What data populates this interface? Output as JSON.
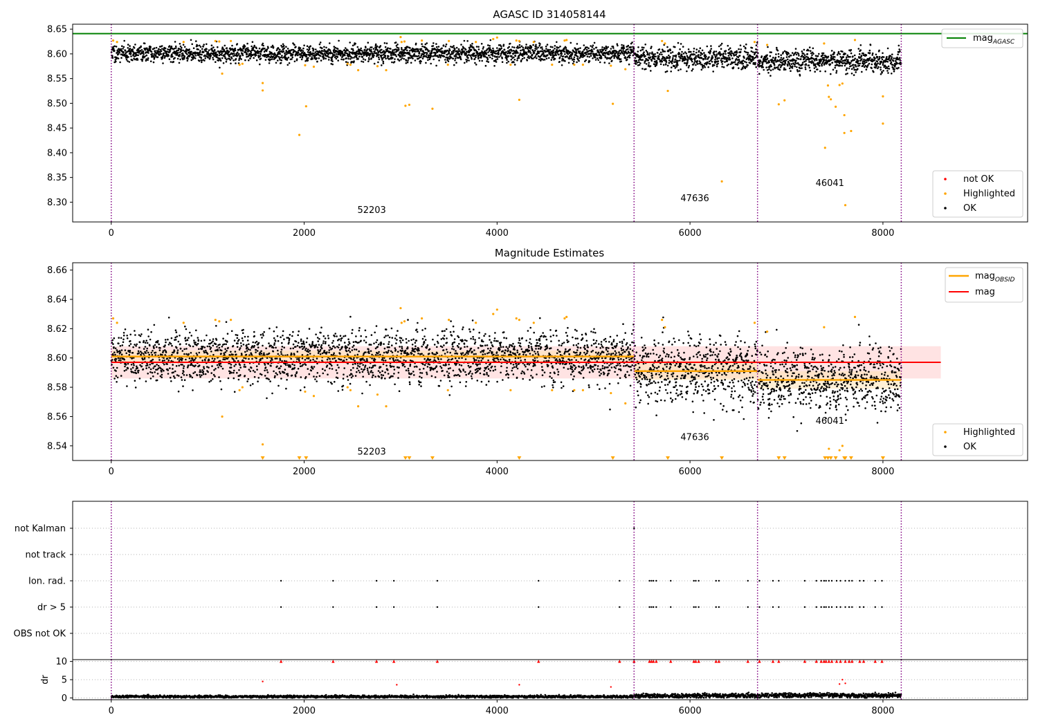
{
  "colors": {
    "ok": "#000000",
    "highlighted": "#ffa500",
    "not_ok": "#ff0000",
    "agasc_line": "#008000",
    "mag_line": "#ff0000",
    "obsid_line": "#ffa500",
    "band": "#ffcccc",
    "boundary": "#800080",
    "grid": "#b0b0b0"
  },
  "chart_data": [
    {
      "type": "scatter",
      "title": "AGASC ID 314058144",
      "xlabel": "",
      "ylabel": "",
      "xlim": [
        -400,
        9500
      ],
      "ylim": [
        8.26,
        8.66
      ],
      "xticks": [
        0,
        2000,
        4000,
        6000,
        8000
      ],
      "xtick_labels": [
        "0",
        "2000",
        "4000",
        "6000",
        "8000"
      ],
      "yticks": [
        8.3,
        8.35,
        8.4,
        8.45,
        8.5,
        8.55,
        8.6,
        8.65
      ],
      "ytick_labels": [
        "8.30",
        "8.35",
        "8.40",
        "8.45",
        "8.50",
        "8.55",
        "8.60",
        "8.65"
      ],
      "grid": false,
      "obsid_boundaries": [
        0,
        5420,
        6700,
        8190
      ],
      "obsid_labels": [
        {
          "text": "52203",
          "x": 2700,
          "y": 8.278
        },
        {
          "text": "47636",
          "x": 6050,
          "y": 8.302
        },
        {
          "text": "46041",
          "x": 7450,
          "y": 8.333
        }
      ],
      "hlines": [
        {
          "name": "mag_AGASC",
          "y": 8.641,
          "color": "#008000"
        }
      ],
      "legends": [
        {
          "position": "upper right",
          "entries": [
            {
              "label": "mag",
              "sub": "AGASC",
              "kind": "line",
              "color": "#008000"
            }
          ]
        },
        {
          "position": "lower right",
          "entries": [
            {
              "label": "not OK",
              "kind": "dot",
              "color": "#ff0000"
            },
            {
              "label": "Highlighted",
              "kind": "dot",
              "color": "#ffa500"
            },
            {
              "label": "OK",
              "kind": "dot",
              "color": "#000000"
            }
          ]
        }
      ],
      "ok_segments": [
        {
          "x_start": 0,
          "x_end": 5420,
          "mean": 8.601,
          "spread": 0.0085
        },
        {
          "x_start": 5420,
          "x_end": 6700,
          "mean": 8.591,
          "spread": 0.011
        },
        {
          "x_start": 6700,
          "x_end": 8190,
          "mean": 8.585,
          "spread": 0.011
        }
      ],
      "highlighted_points": [
        [
          20,
          8.627
        ],
        [
          60,
          8.624
        ],
        [
          750,
          8.624
        ],
        [
          1080,
          8.626
        ],
        [
          1120,
          8.625
        ],
        [
          1150,
          8.56
        ],
        [
          1240,
          8.626
        ],
        [
          1330,
          8.578
        ],
        [
          1360,
          8.58
        ],
        [
          1570,
          8.541
        ],
        [
          1570,
          8.526
        ],
        [
          1950,
          8.436
        ],
        [
          2010,
          8.577
        ],
        [
          2020,
          8.494
        ],
        [
          2100,
          8.574
        ],
        [
          2450,
          8.58
        ],
        [
          2480,
          8.578
        ],
        [
          2560,
          8.567
        ],
        [
          2760,
          8.575
        ],
        [
          2850,
          8.567
        ],
        [
          3000,
          8.634
        ],
        [
          3010,
          8.624
        ],
        [
          3040,
          8.625
        ],
        [
          3050,
          8.495
        ],
        [
          3090,
          8.497
        ],
        [
          3220,
          8.627
        ],
        [
          3330,
          8.489
        ],
        [
          3490,
          8.578
        ],
        [
          3500,
          8.626
        ],
        [
          3780,
          8.624
        ],
        [
          3960,
          8.63
        ],
        [
          4000,
          8.633
        ],
        [
          4140,
          8.578
        ],
        [
          4200,
          8.627
        ],
        [
          4230,
          8.626
        ],
        [
          4230,
          8.507
        ],
        [
          4380,
          8.624
        ],
        [
          4570,
          8.578
        ],
        [
          4700,
          8.627
        ],
        [
          4720,
          8.628
        ],
        [
          4800,
          8.578
        ],
        [
          4890,
          8.578
        ],
        [
          5180,
          8.576
        ],
        [
          5200,
          8.499
        ],
        [
          5330,
          8.569
        ],
        [
          5710,
          8.626
        ],
        [
          5740,
          8.621
        ],
        [
          5770,
          8.525
        ],
        [
          6330,
          8.342
        ],
        [
          6670,
          8.624
        ],
        [
          6800,
          8.618
        ],
        [
          6920,
          8.498
        ],
        [
          6980,
          8.506
        ],
        [
          7390,
          8.621
        ],
        [
          7400,
          8.41
        ],
        [
          7430,
          8.536
        ],
        [
          7440,
          8.513
        ],
        [
          7460,
          8.508
        ],
        [
          7510,
          8.493
        ],
        [
          7550,
          8.537
        ],
        [
          7580,
          8.54
        ],
        [
          7600,
          8.476
        ],
        [
          7600,
          8.44
        ],
        [
          7610,
          8.294
        ],
        [
          7670,
          8.444
        ],
        [
          7710,
          8.628
        ],
        [
          8000,
          8.514
        ],
        [
          8000,
          8.459
        ]
      ],
      "not_ok_points": []
    },
    {
      "type": "scatter",
      "title": "Magnitude Estimates",
      "xlabel": "",
      "ylabel": "",
      "xlim": [
        -400,
        9500
      ],
      "ylim": [
        8.53,
        8.665
      ],
      "xticks": [
        0,
        2000,
        4000,
        6000,
        8000
      ],
      "xtick_labels": [
        "0",
        "2000",
        "4000",
        "6000",
        "8000"
      ],
      "yticks": [
        8.54,
        8.56,
        8.58,
        8.6,
        8.62,
        8.64,
        8.66
      ],
      "ytick_labels": [
        "8.54",
        "8.56",
        "8.58",
        "8.60",
        "8.62",
        "8.64",
        "8.66"
      ],
      "grid": false,
      "obsid_boundaries": [
        0,
        5420,
        6700,
        8190
      ],
      "obsid_labels": [
        {
          "text": "52203",
          "x": 2700,
          "y": 8.534
        },
        {
          "text": "47636",
          "x": 6050,
          "y": 8.544
        },
        {
          "text": "46041",
          "x": 7450,
          "y": 8.555
        }
      ],
      "mag": {
        "value": 8.597,
        "band": [
          8.586,
          8.608
        ],
        "x_range": [
          0,
          8600
        ]
      },
      "mag_obsid": [
        {
          "x_start": 0,
          "x_end": 5420,
          "value": 8.601,
          "band": [
            8.597,
            8.605
          ]
        },
        {
          "x_start": 5420,
          "x_end": 6700,
          "value": 8.591,
          "band": [
            8.585,
            8.598
          ]
        },
        {
          "x_start": 6700,
          "x_end": 8190,
          "value": 8.585,
          "band": [
            8.579,
            8.591
          ]
        }
      ],
      "legends": [
        {
          "position": "upper right",
          "entries": [
            {
              "label": "mag",
              "sub": "OBSID",
              "kind": "line",
              "color": "#ffa500"
            },
            {
              "label": "mag",
              "kind": "line",
              "color": "#ff0000"
            }
          ]
        },
        {
          "position": "lower right",
          "entries": [
            {
              "label": "Highlighted",
              "kind": "dot",
              "color": "#ffa500"
            },
            {
              "label": "OK",
              "kind": "dot",
              "color": "#000000"
            }
          ]
        }
      ],
      "ok_segments": [
        {
          "x_start": 0,
          "x_end": 5420,
          "mean": 8.601,
          "spread": 0.0085
        },
        {
          "x_start": 5420,
          "x_end": 6700,
          "mean": 8.591,
          "spread": 0.011
        },
        {
          "x_start": 6700,
          "x_end": 8190,
          "mean": 8.585,
          "spread": 0.011
        }
      ],
      "highlighted_points": [
        [
          20,
          8.627
        ],
        [
          60,
          8.624
        ],
        [
          750,
          8.624
        ],
        [
          1080,
          8.626
        ],
        [
          1120,
          8.625
        ],
        [
          1150,
          8.56
        ],
        [
          1240,
          8.626
        ],
        [
          1330,
          8.578
        ],
        [
          1360,
          8.58
        ],
        [
          1570,
          8.541
        ],
        [
          2010,
          8.577
        ],
        [
          2100,
          8.574
        ],
        [
          2450,
          8.58
        ],
        [
          2480,
          8.578
        ],
        [
          2560,
          8.567
        ],
        [
          2760,
          8.575
        ],
        [
          2850,
          8.567
        ],
        [
          3000,
          8.634
        ],
        [
          3010,
          8.624
        ],
        [
          3040,
          8.625
        ],
        [
          3220,
          8.627
        ],
        [
          3490,
          8.578
        ],
        [
          3500,
          8.626
        ],
        [
          3780,
          8.624
        ],
        [
          3960,
          8.63
        ],
        [
          4000,
          8.633
        ],
        [
          4140,
          8.578
        ],
        [
          4200,
          8.627
        ],
        [
          4230,
          8.626
        ],
        [
          4380,
          8.624
        ],
        [
          4570,
          8.578
        ],
        [
          4700,
          8.627
        ],
        [
          4720,
          8.628
        ],
        [
          4800,
          8.578
        ],
        [
          4890,
          8.578
        ],
        [
          5180,
          8.576
        ],
        [
          5330,
          8.569
        ],
        [
          5710,
          8.626
        ],
        [
          5740,
          8.621
        ],
        [
          6670,
          8.624
        ],
        [
          6800,
          8.618
        ],
        [
          7390,
          8.621
        ],
        [
          7440,
          8.538
        ],
        [
          7550,
          8.537
        ],
        [
          7580,
          8.54
        ],
        [
          7710,
          8.628
        ]
      ],
      "clipped_low_x": [
        1570,
        1950,
        2020,
        3050,
        3090,
        3330,
        4230,
        5200,
        5770,
        6330,
        6920,
        6980,
        7400,
        7430,
        7460,
        7510,
        7600,
        7610,
        7670,
        8000,
        8000
      ]
    },
    {
      "type": "scatter",
      "title": "",
      "xlabel": "",
      "ylabel": "",
      "xlim": [
        -400,
        9500
      ],
      "categories": [
        "not Kalman",
        "not track",
        "Ion. rad.",
        "dr > 5",
        "OBS not OK"
      ],
      "grid": true,
      "obsid_boundaries": [
        0,
        5420,
        6700,
        8190
      ],
      "not_kalman_x": [
        5420
      ],
      "not_track_x": [],
      "ion_rad_x": [
        1760,
        2300,
        2750,
        2930,
        3380,
        4430,
        5270,
        5580,
        5600,
        5620,
        5650,
        5800,
        6040,
        6060,
        6090,
        6270,
        6300,
        6600,
        6720,
        6860,
        6920,
        7190,
        7310,
        7360,
        7390,
        7410,
        7440,
        7470,
        7520,
        7560,
        7610,
        7650,
        7680,
        7760,
        7800,
        7920,
        7990
      ],
      "dr_gt_5_x": [
        1760,
        2300,
        2750,
        2930,
        3380,
        4430,
        5270,
        5580,
        5600,
        5620,
        5650,
        5800,
        6040,
        6060,
        6090,
        6270,
        6300,
        6600,
        6720,
        6860,
        6920,
        7190,
        7310,
        7360,
        7390,
        7410,
        7440,
        7470,
        7520,
        7560,
        7610,
        7650,
        7680,
        7760,
        7800,
        7920,
        7990
      ],
      "obs_not_ok_x": []
    },
    {
      "type": "scatter",
      "title": "",
      "xlabel": "",
      "ylabel": "dr",
      "xlim": [
        -400,
        9500
      ],
      "ylim": [
        -0.5,
        10.5
      ],
      "xticks": [
        0,
        2000,
        4000,
        6000,
        8000
      ],
      "xtick_labels": [
        "0",
        "2000",
        "4000",
        "6000",
        "8000"
      ],
      "yticks": [
        0,
        5,
        10
      ],
      "ytick_labels": [
        "0",
        "5",
        "10"
      ],
      "grid": true,
      "obsid_boundaries": [
        0,
        5420,
        6700,
        8190
      ],
      "ok_segments": [
        {
          "x_start": 0,
          "x_end": 5420,
          "mean": 0.35,
          "spread": 0.18
        },
        {
          "x_start": 5420,
          "x_end": 6700,
          "mean": 0.6,
          "spread": 0.3
        },
        {
          "x_start": 6700,
          "x_end": 8190,
          "mean": 0.7,
          "spread": 0.3
        }
      ],
      "outlier_points": [
        [
          1570,
          4.5
        ],
        [
          2960,
          3.6
        ],
        [
          4230,
          3.6
        ],
        [
          5180,
          3.0
        ],
        [
          7550,
          3.8
        ],
        [
          7580,
          5.0
        ],
        [
          7610,
          4.0
        ]
      ],
      "clipped_high_x": [
        1760,
        2300,
        2750,
        2930,
        3380,
        4430,
        5270,
        5420,
        5580,
        5600,
        5620,
        5650,
        5800,
        6040,
        6060,
        6090,
        6270,
        6300,
        6600,
        6720,
        6860,
        6920,
        7190,
        7310,
        7360,
        7390,
        7410,
        7440,
        7470,
        7520,
        7560,
        7610,
        7650,
        7680,
        7760,
        7800,
        7920,
        7990
      ]
    }
  ]
}
